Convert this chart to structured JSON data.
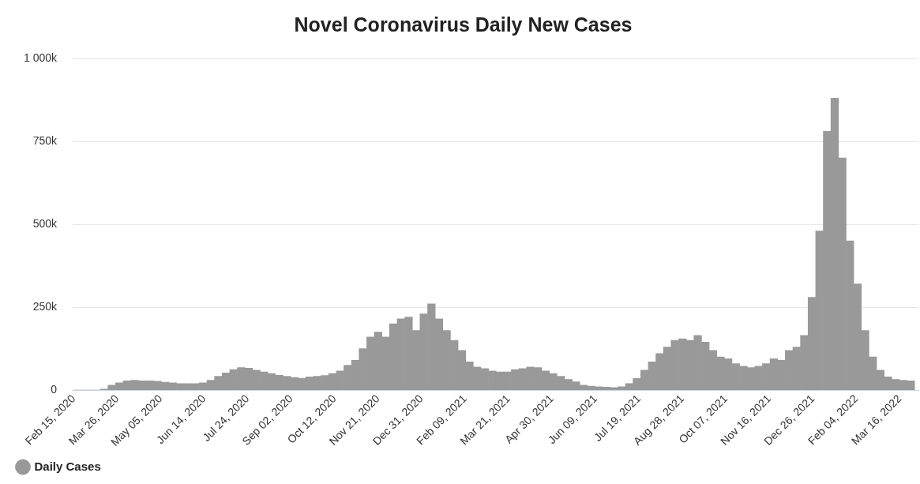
{
  "chart_data": {
    "type": "bar",
    "title": "Novel Coronavirus Daily New Cases",
    "x": [
      "2020-02-15",
      "2020-02-22",
      "2020-02-29",
      "2020-03-07",
      "2020-03-14",
      "2020-03-21",
      "2020-03-28",
      "2020-04-04",
      "2020-04-11",
      "2020-04-18",
      "2020-04-25",
      "2020-05-02",
      "2020-05-09",
      "2020-05-16",
      "2020-05-23",
      "2020-05-30",
      "2020-06-06",
      "2020-06-13",
      "2020-06-20",
      "2020-06-27",
      "2020-07-04",
      "2020-07-11",
      "2020-07-18",
      "2020-07-25",
      "2020-08-01",
      "2020-08-08",
      "2020-08-15",
      "2020-08-22",
      "2020-08-29",
      "2020-09-05",
      "2020-09-12",
      "2020-09-19",
      "2020-09-26",
      "2020-10-03",
      "2020-10-10",
      "2020-10-17",
      "2020-10-24",
      "2020-10-31",
      "2020-11-07",
      "2020-11-14",
      "2020-11-21",
      "2020-11-28",
      "2020-12-05",
      "2020-12-12",
      "2020-12-19",
      "2020-12-26",
      "2021-01-02",
      "2021-01-09",
      "2021-01-16",
      "2021-01-23",
      "2021-01-30",
      "2021-02-06",
      "2021-02-13",
      "2021-02-20",
      "2021-02-27",
      "2021-03-06",
      "2021-03-13",
      "2021-03-20",
      "2021-03-27",
      "2021-04-03",
      "2021-04-10",
      "2021-04-17",
      "2021-04-24",
      "2021-05-01",
      "2021-05-08",
      "2021-05-15",
      "2021-05-22",
      "2021-05-29",
      "2021-06-05",
      "2021-06-12",
      "2021-06-19",
      "2021-06-26",
      "2021-07-03",
      "2021-07-10",
      "2021-07-17",
      "2021-07-24",
      "2021-07-31",
      "2021-08-07",
      "2021-08-14",
      "2021-08-21",
      "2021-08-28",
      "2021-09-04",
      "2021-09-11",
      "2021-09-18",
      "2021-09-25",
      "2021-10-02",
      "2021-10-09",
      "2021-10-16",
      "2021-10-23",
      "2021-10-30",
      "2021-11-06",
      "2021-11-13",
      "2021-11-20",
      "2021-11-27",
      "2021-12-04",
      "2021-12-11",
      "2021-12-18",
      "2021-12-25",
      "2022-01-01",
      "2022-01-08",
      "2022-01-15",
      "2022-01-22",
      "2022-01-29",
      "2022-02-05",
      "2022-02-12",
      "2022-02-19",
      "2022-02-26",
      "2022-03-05",
      "2022-03-12",
      "2022-03-19",
      "2022-03-26"
    ],
    "series": [
      {
        "name": "Daily Cases",
        "color": "#999999",
        "values": [
          0,
          0,
          0,
          0,
          3000,
          15000,
          22000,
          28000,
          30000,
          28000,
          28000,
          27000,
          24000,
          22000,
          20000,
          20000,
          20000,
          22000,
          30000,
          42000,
          52000,
          62000,
          68000,
          66000,
          60000,
          55000,
          50000,
          45000,
          42000,
          38000,
          36000,
          40000,
          42000,
          44000,
          50000,
          58000,
          75000,
          90000,
          125000,
          160000,
          175000,
          160000,
          200000,
          215000,
          220000,
          180000,
          230000,
          260000,
          215000,
          180000,
          150000,
          120000,
          85000,
          70000,
          65000,
          58000,
          55000,
          55000,
          62000,
          65000,
          70000,
          68000,
          58000,
          50000,
          42000,
          32000,
          25000,
          15000,
          12000,
          10000,
          9000,
          8000,
          10000,
          20000,
          35000,
          60000,
          85000,
          110000,
          130000,
          150000,
          155000,
          150000,
          165000,
          145000,
          120000,
          100000,
          95000,
          80000,
          72000,
          68000,
          72000,
          80000,
          95000,
          90000,
          120000,
          130000,
          165000,
          280000,
          480000,
          780000,
          880000,
          700000,
          450000,
          320000,
          180000,
          100000,
          60000,
          40000,
          32000,
          30000,
          28000
        ]
      }
    ],
    "xlim": [
      "2020-02-14",
      "2022-04-02"
    ],
    "xticks": [
      {
        "value": "2020-02-15",
        "label": "Feb 15, 2020"
      },
      {
        "value": "2020-03-26",
        "label": "Mar 26, 2020"
      },
      {
        "value": "2020-05-05",
        "label": "May 05, 2020"
      },
      {
        "value": "2020-06-14",
        "label": "Jun 14, 2020"
      },
      {
        "value": "2020-07-24",
        "label": "Jul 24, 2020"
      },
      {
        "value": "2020-09-02",
        "label": "Sep 02, 2020"
      },
      {
        "value": "2020-10-12",
        "label": "Oct 12, 2020"
      },
      {
        "value": "2020-11-21",
        "label": "Nov 21, 2020"
      },
      {
        "value": "2020-12-31",
        "label": "Dec 31, 2020"
      },
      {
        "value": "2021-02-09",
        "label": "Feb 09, 2021"
      },
      {
        "value": "2021-03-21",
        "label": "Mar 21, 2021"
      },
      {
        "value": "2021-04-30",
        "label": "Apr 30, 2021"
      },
      {
        "value": "2021-06-09",
        "label": "Jun 09, 2021"
      },
      {
        "value": "2021-07-19",
        "label": "Jul 19, 2021"
      },
      {
        "value": "2021-08-28",
        "label": "Aug 28, 2021"
      },
      {
        "value": "2021-10-07",
        "label": "Oct 07, 2021"
      },
      {
        "value": "2021-11-16",
        "label": "Nov 16, 2021"
      },
      {
        "value": "2021-12-26",
        "label": "Dec 26, 2021"
      },
      {
        "value": "2022-02-04",
        "label": "Feb 04, 2022"
      },
      {
        "value": "2022-03-16",
        "label": "Mar 16, 2022"
      }
    ],
    "ylim": [
      0,
      1000000
    ],
    "yticks": [
      {
        "value": 0,
        "label": "0"
      },
      {
        "value": 250000,
        "label": "250k"
      },
      {
        "value": 500000,
        "label": "500k"
      },
      {
        "value": 750000,
        "label": "750k"
      },
      {
        "value": 1000000,
        "label": "1 000k"
      }
    ],
    "grid": "y",
    "legend": "bottom left"
  }
}
